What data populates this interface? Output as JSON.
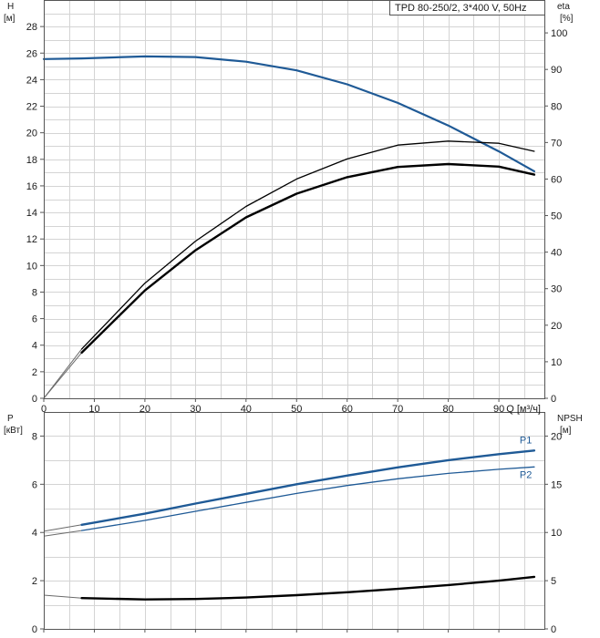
{
  "chart_data": [
    {
      "type": "line",
      "title": "TPD 80-250/2, 3*400 V, 50Hz",
      "left_axis": {
        "label_line1": "H",
        "label_line2": "[м]",
        "range": [
          0,
          30
        ],
        "ticks": [
          0,
          2,
          4,
          6,
          8,
          10,
          12,
          14,
          16,
          18,
          20,
          22,
          24,
          26,
          28
        ]
      },
      "right_axis": {
        "label_line1": "eta",
        "label_line2": "[%]",
        "range": [
          0,
          109
        ],
        "ticks": [
          0,
          10,
          20,
          30,
          40,
          50,
          60,
          70,
          80,
          90,
          100
        ]
      },
      "x_axis": {
        "label": "Q [м³/ч]",
        "range": [
          0,
          99
        ],
        "ticks": [
          0,
          10,
          20,
          30,
          40,
          50,
          60,
          70,
          80,
          90
        ]
      },
      "grid": true,
      "series": [
        {
          "color": "#1f5a96",
          "axis": "left",
          "width": 2.2,
          "x": [
            0,
            7.5,
            20,
            30,
            40,
            50,
            60,
            70,
            80,
            90,
            97
          ],
          "y": [
            25.55,
            25.6,
            25.75,
            25.7,
            25.35,
            24.7,
            23.65,
            22.25,
            20.55,
            18.6,
            17.1
          ]
        },
        {
          "color": "#000000",
          "axis": "right",
          "width": 1.3,
          "start_x": 7.5,
          "x": [
            0,
            7.5,
            20,
            30,
            40,
            50,
            60,
            70,
            80,
            90,
            97
          ],
          "y": [
            0,
            13.5,
            31.5,
            43,
            52.5,
            60,
            65.5,
            69.3,
            70.4,
            69.8,
            67.6
          ]
        },
        {
          "color": "#000000",
          "axis": "right",
          "width": 2.4,
          "start_x": 7.5,
          "x": [
            0,
            7.5,
            20,
            30,
            40,
            50,
            60,
            70,
            80,
            90,
            97
          ],
          "y": [
            0,
            12.5,
            29.5,
            40.5,
            49.5,
            56,
            60.5,
            63.3,
            64.1,
            63.4,
            61.2
          ]
        }
      ]
    },
    {
      "type": "line",
      "left_axis": {
        "label_line1": "P",
        "label_line2": "[кВт]",
        "range": [
          0,
          9
        ],
        "ticks": [
          0,
          2,
          4,
          6,
          8
        ]
      },
      "right_axis": {
        "label_line1": "NPSH",
        "label_line2": "[м]",
        "range": [
          0,
          22.5
        ],
        "ticks": [
          0,
          5,
          10,
          15,
          20
        ]
      },
      "x_axis": {
        "range": [
          0,
          99
        ],
        "ticks": [
          0,
          10,
          20,
          30,
          40,
          50,
          60,
          70,
          80,
          90
        ]
      },
      "grid": true,
      "series": [
        {
          "name": "P1",
          "color": "#1f5a96",
          "axis": "left",
          "width": 2.4,
          "start_x": 7.5,
          "x": [
            0,
            7.5,
            20,
            30,
            40,
            50,
            60,
            70,
            80,
            90,
            97
          ],
          "y": [
            4.05,
            4.32,
            4.78,
            5.2,
            5.6,
            6.0,
            6.36,
            6.7,
            7.0,
            7.25,
            7.4
          ]
        },
        {
          "name": "P2",
          "color": "#1f5a96",
          "axis": "left",
          "width": 1.3,
          "start_x": 7.5,
          "x": [
            0,
            7.5,
            20,
            30,
            40,
            50,
            60,
            70,
            80,
            90,
            97
          ],
          "y": [
            3.85,
            4.08,
            4.5,
            4.88,
            5.25,
            5.62,
            5.95,
            6.23,
            6.45,
            6.62,
            6.72
          ]
        },
        {
          "color": "#000000",
          "axis": "right",
          "width": 2.4,
          "start_x": 7.5,
          "x": [
            0,
            7.5,
            20,
            30,
            40,
            50,
            60,
            70,
            80,
            90,
            97
          ],
          "y": [
            3.5,
            3.2,
            3.05,
            3.1,
            3.25,
            3.5,
            3.8,
            4.15,
            4.55,
            5.0,
            5.4
          ]
        }
      ]
    }
  ]
}
